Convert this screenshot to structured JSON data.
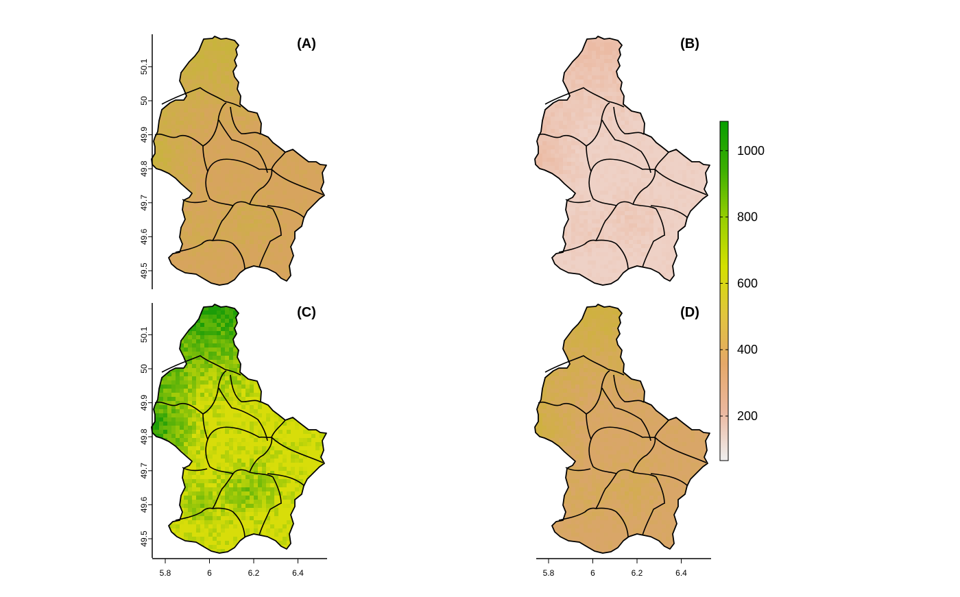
{
  "panels": [
    {
      "label": "(A)",
      "palette": [
        "#c8b43c",
        "#d7a45e"
      ]
    },
    {
      "label": "(B)",
      "palette": [
        "#ebbba4",
        "#eed1c6"
      ]
    },
    {
      "label": "(C)",
      "palette": [
        "#1c9d08",
        "#d8dd0a"
      ]
    },
    {
      "label": "(D)",
      "palette": [
        "#cfb140",
        "#d9a668"
      ]
    }
  ],
  "axes": {
    "y_ticks": [
      "49.5",
      "49.6",
      "49.7",
      "49.8",
      "49.9",
      "50",
      "50.1"
    ],
    "x_ticks": [
      "5.8",
      "6",
      "6.2",
      "6.4"
    ]
  },
  "legend": {
    "ticks": [
      "200",
      "400",
      "600",
      "800",
      "1000"
    ],
    "colors": [
      "#efefef",
      "#ebb8a0",
      "#e5a868",
      "#e1c53e",
      "#d4e000",
      "#97cf00",
      "#3daf00",
      "#089e00"
    ]
  }
}
